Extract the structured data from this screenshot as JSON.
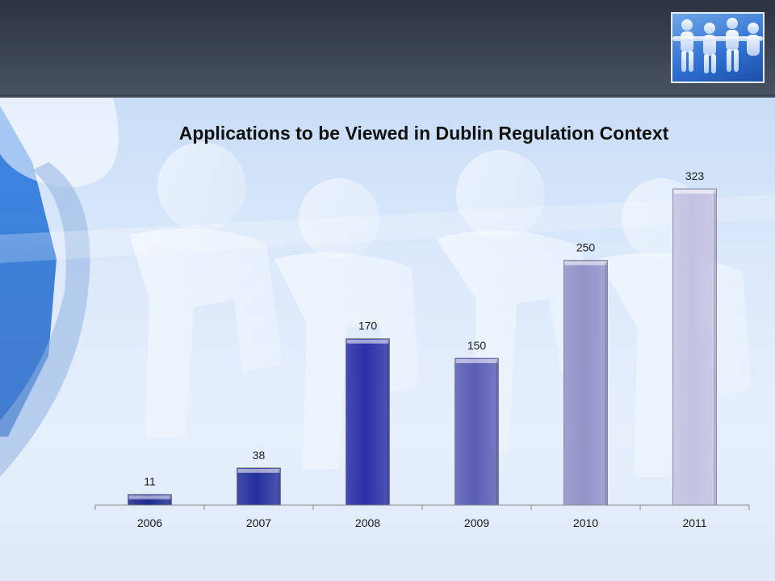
{
  "slide": {
    "colors": {
      "header": "#343c48",
      "background": "#dce9fb",
      "logo_blue": "#2e6fd0"
    },
    "logo_icon": "people-chain-icon"
  },
  "chart_data": {
    "type": "bar",
    "title": "Applications to be Viewed in Dublin Regulation Context",
    "categories": [
      "2006",
      "2007",
      "2008",
      "2009",
      "2010",
      "2011"
    ],
    "values": [
      11,
      38,
      170,
      150,
      250,
      323
    ],
    "data_labels": [
      "11",
      "38",
      "170",
      "150",
      "250",
      "323"
    ],
    "bar_colors": [
      "#1f2a8e",
      "#25309b",
      "#2a2fa6",
      "#5b5eb4",
      "#9393c8",
      "#c4c3e2"
    ],
    "xlabel": "",
    "ylabel": "",
    "ylim": [
      0,
      323
    ],
    "grid": false,
    "legend": "none"
  }
}
